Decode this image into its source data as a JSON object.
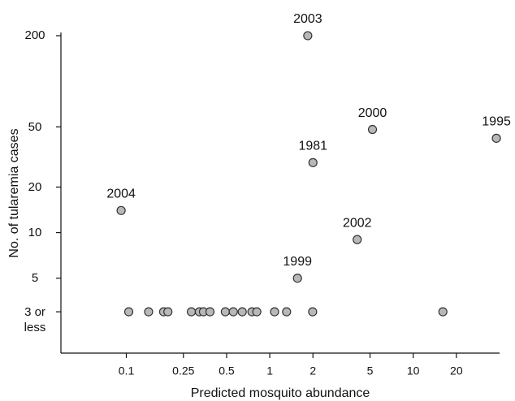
{
  "chart_data": {
    "type": "scatter",
    "x_label": "Predicted mosquito abundance",
    "y_label": "No. of tularemia cases",
    "x_scale": "log",
    "y_scale": "log",
    "xlim": [
      0.035,
      40
    ],
    "ylim": [
      1.6,
      210
    ],
    "xticks": [
      0.1,
      0.25,
      0.5,
      1,
      2,
      5,
      10,
      20
    ],
    "yticks": [
      200,
      50,
      20,
      10,
      5,
      {
        "value": 3,
        "label": "3 or less"
      }
    ],
    "series": [
      {
        "color": "#b8b8b8",
        "x": [
          1.84,
          5.2,
          38,
          2.0,
          0.092,
          4.07,
          1.56,
          0.104,
          0.143,
          0.182,
          0.195,
          0.284,
          0.323,
          0.345,
          0.383,
          0.49,
          0.557,
          0.643,
          0.751,
          0.812,
          1.08,
          1.31,
          1.99,
          16.1
        ],
        "values": [
          200,
          48,
          42,
          29,
          14,
          9,
          5,
          3,
          3,
          3,
          3,
          3,
          3,
          3,
          3,
          3,
          3,
          3,
          3,
          3,
          3,
          3,
          3,
          3
        ],
        "point_labels": [
          "2003",
          "2000",
          "1995",
          "1981",
          "2004",
          "2002",
          "1999",
          null,
          null,
          null,
          null,
          null,
          null,
          null,
          null,
          null,
          null,
          null,
          null,
          null,
          null,
          null,
          null,
          null
        ]
      }
    ]
  }
}
